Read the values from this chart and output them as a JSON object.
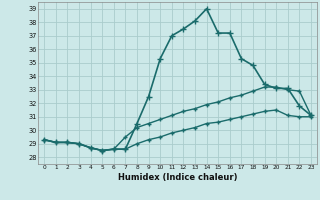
{
  "xlabel": "Humidex (Indice chaleur)",
  "ylabel": "",
  "xlim": [
    -0.5,
    23.5
  ],
  "ylim": [
    27.5,
    39.5
  ],
  "yticks": [
    28,
    29,
    30,
    31,
    32,
    33,
    34,
    35,
    36,
    37,
    38,
    39
  ],
  "xticks": [
    0,
    1,
    2,
    3,
    4,
    5,
    6,
    7,
    8,
    9,
    10,
    11,
    12,
    13,
    14,
    15,
    16,
    17,
    18,
    19,
    20,
    21,
    22,
    23
  ],
  "bg_color": "#cce8e8",
  "grid_color": "#aacccc",
  "line_color": "#1a6b6b",
  "line_series": [
    {
      "x": [
        0,
        1,
        2,
        3,
        4,
        5,
        6,
        7,
        8,
        9,
        10,
        11,
        12,
        13,
        14,
        15,
        16,
        17,
        18,
        19,
        20,
        21,
        22,
        23
      ],
      "y": [
        29.3,
        29.1,
        29.1,
        29.0,
        28.7,
        28.5,
        28.6,
        28.6,
        30.5,
        32.5,
        35.3,
        37.0,
        37.5,
        38.1,
        39.0,
        37.2,
        37.2,
        35.3,
        34.8,
        33.4,
        33.1,
        33.1,
        31.8,
        31.1
      ],
      "marker": "+",
      "markersize": 4,
      "linewidth": 1.2
    },
    {
      "x": [
        0,
        1,
        2,
        3,
        4,
        5,
        6,
        7,
        8,
        9,
        10,
        11,
        12,
        13,
        14,
        15,
        16,
        17,
        18,
        19,
        20,
        21,
        22,
        23
      ],
      "y": [
        29.3,
        29.1,
        29.1,
        29.0,
        28.7,
        28.5,
        28.6,
        29.5,
        30.2,
        30.5,
        30.8,
        31.1,
        31.4,
        31.6,
        31.9,
        32.1,
        32.4,
        32.6,
        32.9,
        33.2,
        33.2,
        33.0,
        32.9,
        31.1
      ],
      "marker": "+",
      "markersize": 3,
      "linewidth": 1.0
    },
    {
      "x": [
        0,
        1,
        2,
        3,
        4,
        5,
        6,
        7,
        8,
        9,
        10,
        11,
        12,
        13,
        14,
        15,
        16,
        17,
        18,
        19,
        20,
        21,
        22,
        23
      ],
      "y": [
        29.3,
        29.1,
        29.1,
        29.0,
        28.7,
        28.5,
        28.6,
        28.6,
        29.0,
        29.3,
        29.5,
        29.8,
        30.0,
        30.2,
        30.5,
        30.6,
        30.8,
        31.0,
        31.2,
        31.4,
        31.5,
        31.1,
        31.0,
        31.0
      ],
      "marker": "+",
      "markersize": 3,
      "linewidth": 1.0
    }
  ]
}
